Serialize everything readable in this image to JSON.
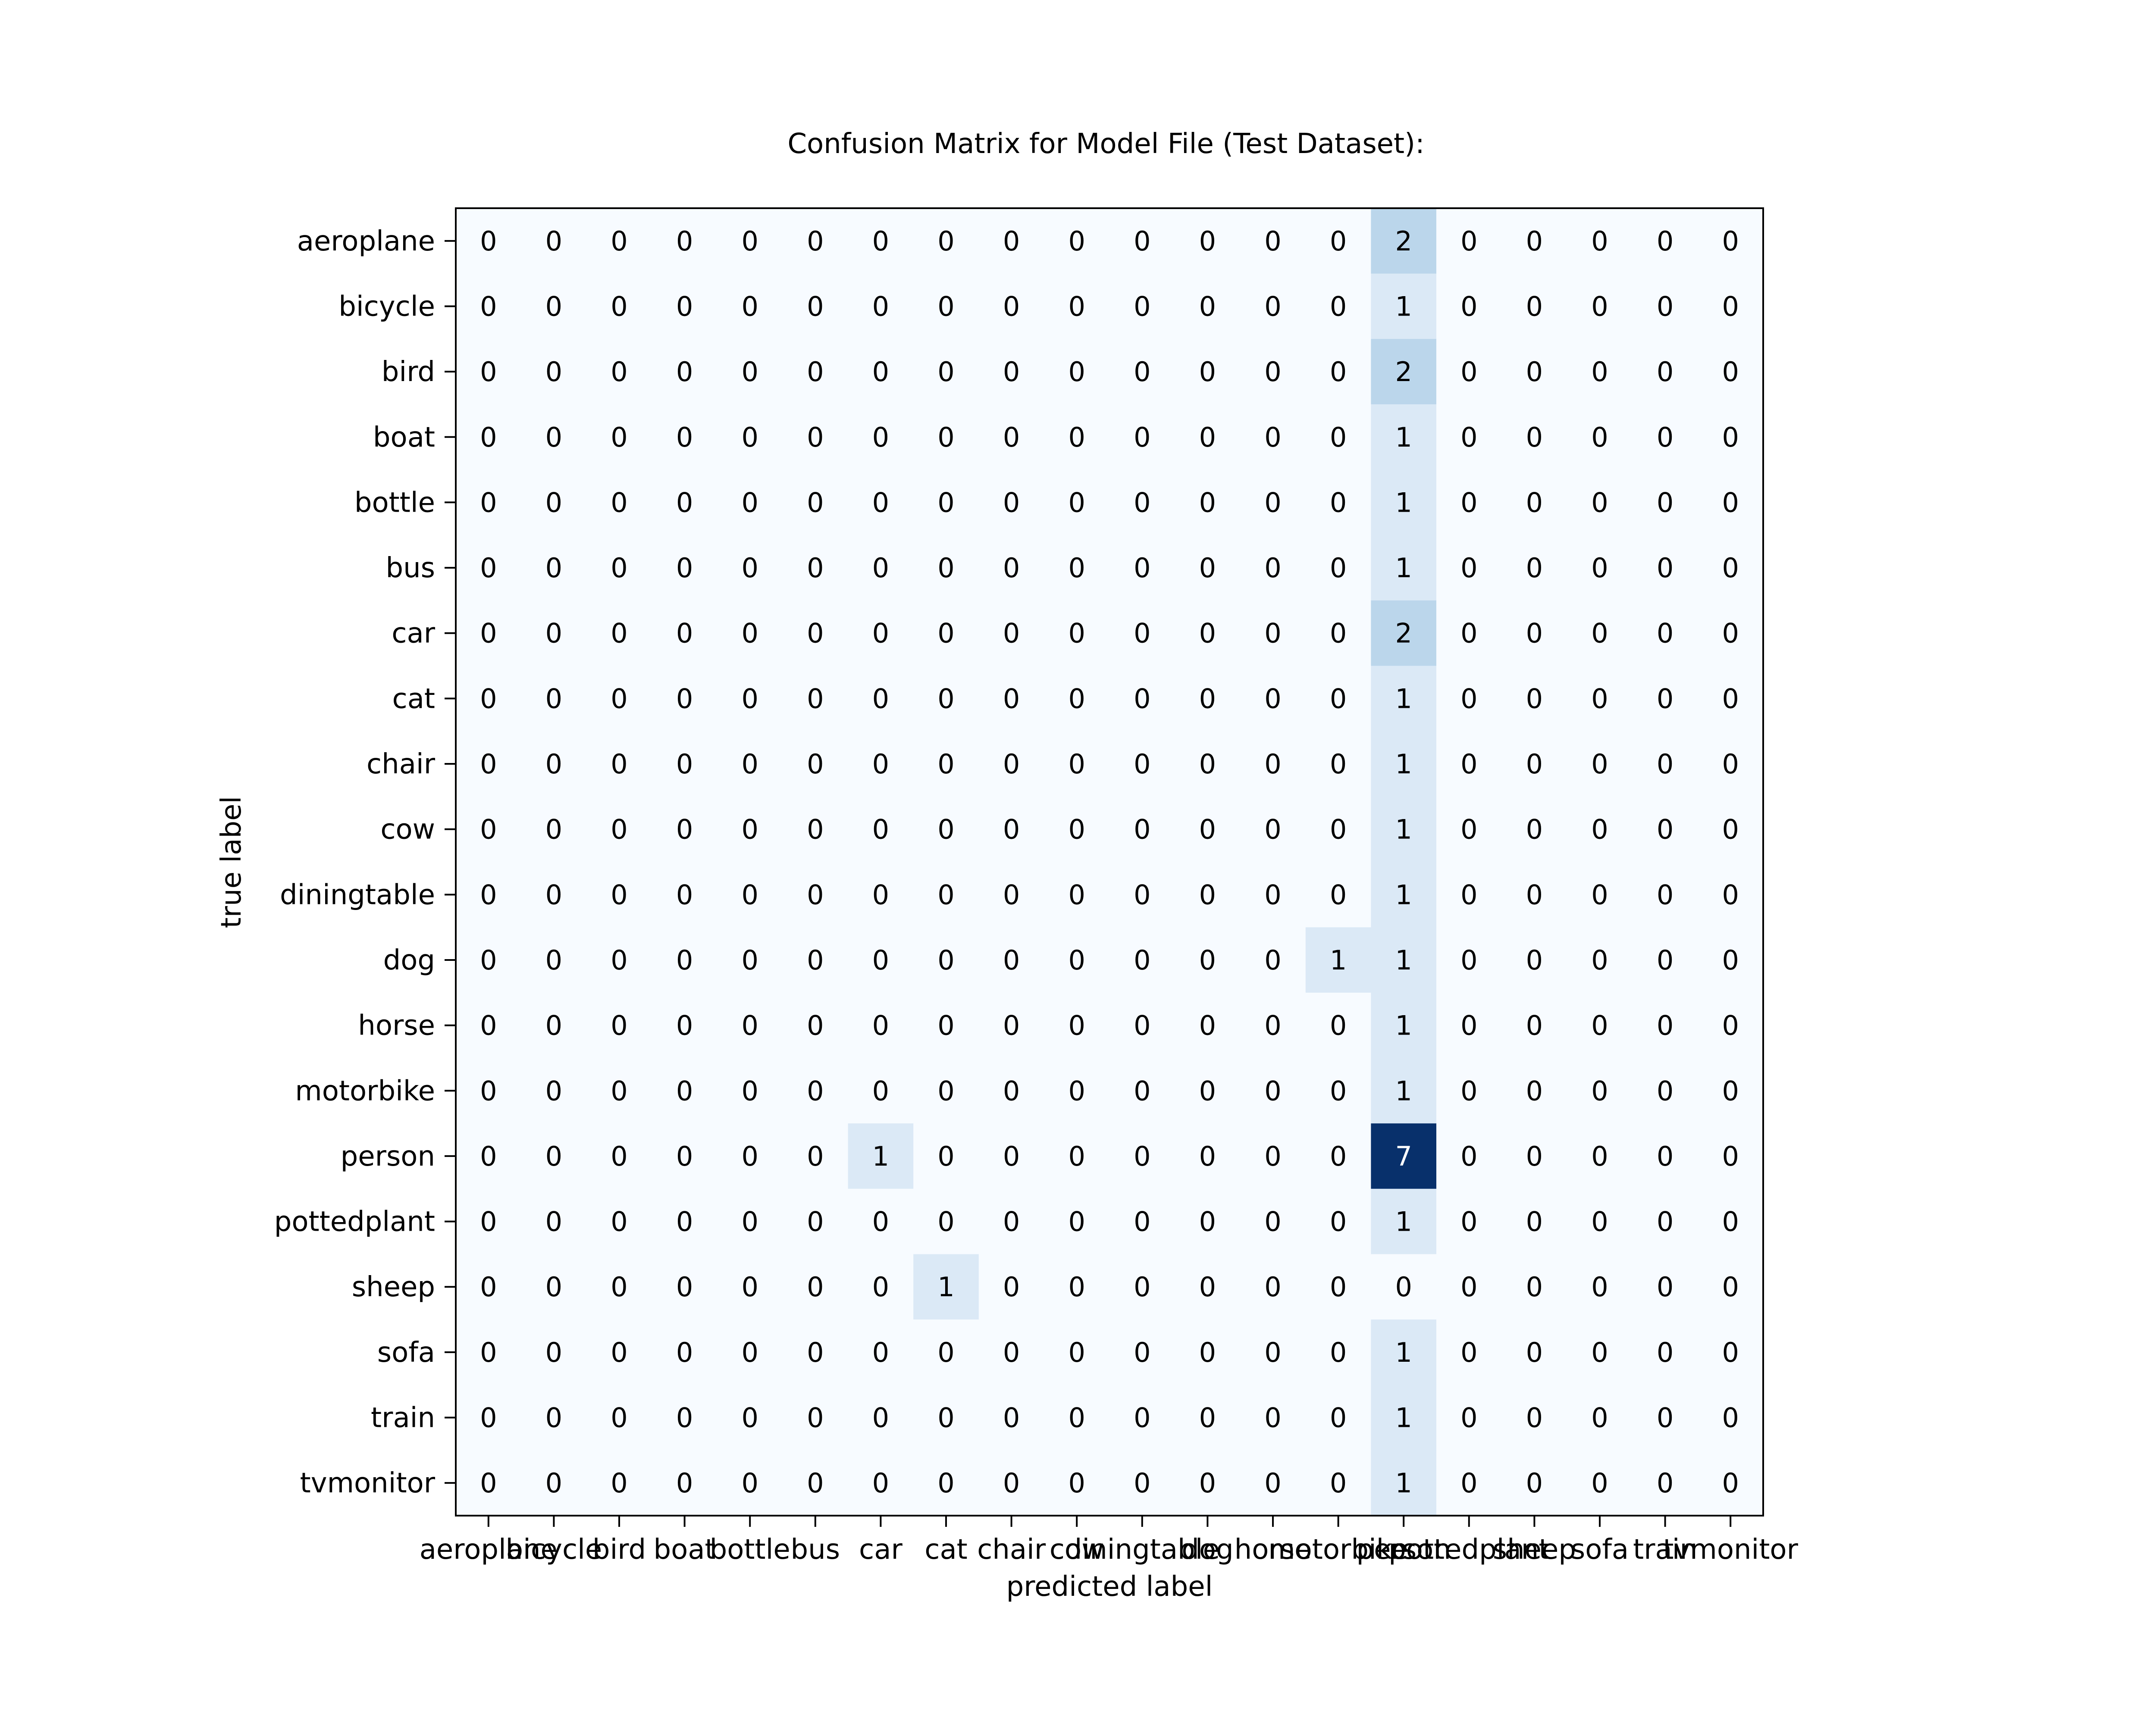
{
  "chart_data": {
    "type": "heatmap",
    "title": "Confusion Matrix for Model File (Test Dataset):",
    "xlabel": "predicted label",
    "ylabel": "true label",
    "colormap": "Blues",
    "color_range": [
      0,
      7
    ],
    "x_categories": [
      "aeroplane",
      "bicycle",
      "bird",
      "boat",
      "bottle",
      "bus",
      "car",
      "cat",
      "chair",
      "cow",
      "diningtable",
      "dog",
      "horse",
      "motorbike",
      "person",
      "pottedplant",
      "sheep",
      "sofa",
      "train",
      "tvmonitor"
    ],
    "y_categories": [
      "aeroplane",
      "bicycle",
      "bird",
      "boat",
      "bottle",
      "bus",
      "car",
      "cat",
      "chair",
      "cow",
      "diningtable",
      "dog",
      "horse",
      "motorbike",
      "person",
      "pottedplant",
      "sheep",
      "sofa",
      "train",
      "tvmonitor"
    ],
    "values": [
      [
        0,
        0,
        0,
        0,
        0,
        0,
        0,
        0,
        0,
        0,
        0,
        0,
        0,
        0,
        2,
        0,
        0,
        0,
        0,
        0
      ],
      [
        0,
        0,
        0,
        0,
        0,
        0,
        0,
        0,
        0,
        0,
        0,
        0,
        0,
        0,
        1,
        0,
        0,
        0,
        0,
        0
      ],
      [
        0,
        0,
        0,
        0,
        0,
        0,
        0,
        0,
        0,
        0,
        0,
        0,
        0,
        0,
        2,
        0,
        0,
        0,
        0,
        0
      ],
      [
        0,
        0,
        0,
        0,
        0,
        0,
        0,
        0,
        0,
        0,
        0,
        0,
        0,
        0,
        1,
        0,
        0,
        0,
        0,
        0
      ],
      [
        0,
        0,
        0,
        0,
        0,
        0,
        0,
        0,
        0,
        0,
        0,
        0,
        0,
        0,
        1,
        0,
        0,
        0,
        0,
        0
      ],
      [
        0,
        0,
        0,
        0,
        0,
        0,
        0,
        0,
        0,
        0,
        0,
        0,
        0,
        0,
        1,
        0,
        0,
        0,
        0,
        0
      ],
      [
        0,
        0,
        0,
        0,
        0,
        0,
        0,
        0,
        0,
        0,
        0,
        0,
        0,
        0,
        2,
        0,
        0,
        0,
        0,
        0
      ],
      [
        0,
        0,
        0,
        0,
        0,
        0,
        0,
        0,
        0,
        0,
        0,
        0,
        0,
        0,
        1,
        0,
        0,
        0,
        0,
        0
      ],
      [
        0,
        0,
        0,
        0,
        0,
        0,
        0,
        0,
        0,
        0,
        0,
        0,
        0,
        0,
        1,
        0,
        0,
        0,
        0,
        0
      ],
      [
        0,
        0,
        0,
        0,
        0,
        0,
        0,
        0,
        0,
        0,
        0,
        0,
        0,
        0,
        1,
        0,
        0,
        0,
        0,
        0
      ],
      [
        0,
        0,
        0,
        0,
        0,
        0,
        0,
        0,
        0,
        0,
        0,
        0,
        0,
        0,
        1,
        0,
        0,
        0,
        0,
        0
      ],
      [
        0,
        0,
        0,
        0,
        0,
        0,
        0,
        0,
        0,
        0,
        0,
        0,
        0,
        1,
        1,
        0,
        0,
        0,
        0,
        0
      ],
      [
        0,
        0,
        0,
        0,
        0,
        0,
        0,
        0,
        0,
        0,
        0,
        0,
        0,
        0,
        1,
        0,
        0,
        0,
        0,
        0
      ],
      [
        0,
        0,
        0,
        0,
        0,
        0,
        0,
        0,
        0,
        0,
        0,
        0,
        0,
        0,
        1,
        0,
        0,
        0,
        0,
        0
      ],
      [
        0,
        0,
        0,
        0,
        0,
        0,
        1,
        0,
        0,
        0,
        0,
        0,
        0,
        0,
        7,
        0,
        0,
        0,
        0,
        0
      ],
      [
        0,
        0,
        0,
        0,
        0,
        0,
        0,
        0,
        0,
        0,
        0,
        0,
        0,
        0,
        1,
        0,
        0,
        0,
        0,
        0
      ],
      [
        0,
        0,
        0,
        0,
        0,
        0,
        0,
        1,
        0,
        0,
        0,
        0,
        0,
        0,
        0,
        0,
        0,
        0,
        0,
        0
      ],
      [
        0,
        0,
        0,
        0,
        0,
        0,
        0,
        0,
        0,
        0,
        0,
        0,
        0,
        0,
        1,
        0,
        0,
        0,
        0,
        0
      ],
      [
        0,
        0,
        0,
        0,
        0,
        0,
        0,
        0,
        0,
        0,
        0,
        0,
        0,
        0,
        1,
        0,
        0,
        0,
        0,
        0
      ],
      [
        0,
        0,
        0,
        0,
        0,
        0,
        0,
        0,
        0,
        0,
        0,
        0,
        0,
        0,
        1,
        0,
        0,
        0,
        0,
        0
      ]
    ],
    "legend": "none",
    "grid": false
  }
}
